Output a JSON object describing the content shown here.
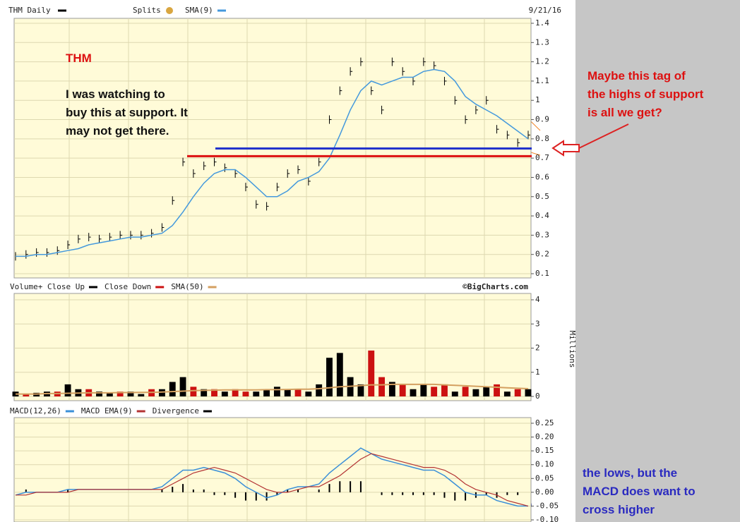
{
  "chart_data": [
    {
      "type": "price",
      "title": "THM Daily",
      "date": "9/21/16",
      "legend": [
        "Splits",
        "SMA(9)"
      ],
      "series": [
        {
          "name": "THM Daily",
          "color": "#000000",
          "values": [
            0.19,
            0.2,
            0.21,
            0.21,
            0.22,
            0.25,
            0.28,
            0.29,
            0.28,
            0.29,
            0.3,
            0.3,
            0.3,
            0.31,
            0.34,
            0.48,
            0.68,
            0.62,
            0.66,
            0.68,
            0.65,
            0.62,
            0.55,
            0.46,
            0.45,
            0.55,
            0.62,
            0.64,
            0.58,
            0.68,
            0.9,
            1.05,
            1.15,
            1.2,
            1.05,
            0.95,
            1.2,
            1.15,
            1.1,
            1.2,
            1.18,
            1.1,
            1.0,
            0.9,
            0.95,
            1.0,
            0.85,
            0.82,
            0.78,
            0.82
          ]
        },
        {
          "name": "SMA(9)",
          "color": "#4499dd",
          "values": [
            0.19,
            0.19,
            0.2,
            0.2,
            0.21,
            0.22,
            0.23,
            0.25,
            0.26,
            0.27,
            0.28,
            0.29,
            0.29,
            0.3,
            0.31,
            0.35,
            0.42,
            0.5,
            0.57,
            0.62,
            0.64,
            0.64,
            0.6,
            0.55,
            0.5,
            0.5,
            0.53,
            0.58,
            0.6,
            0.63,
            0.7,
            0.82,
            0.95,
            1.05,
            1.1,
            1.08,
            1.1,
            1.12,
            1.12,
            1.15,
            1.16,
            1.15,
            1.1,
            1.02,
            0.98,
            0.95,
            0.92,
            0.88,
            0.84,
            0.8
          ]
        }
      ],
      "levels": [
        {
          "value": 0.75,
          "color": "#2233cc"
        },
        {
          "value": 0.71,
          "color": "#dd1111"
        }
      ],
      "ylim": [
        0.1,
        1.4
      ],
      "yticks": [
        0.1,
        0.2,
        0.3,
        0.4,
        0.5,
        0.6,
        0.7,
        0.8,
        0.9,
        1.0,
        1.1,
        1.2,
        1.3,
        1.4
      ],
      "grid": true
    },
    {
      "type": "volume",
      "credit": "©BigCharts.com",
      "ylabel": "Millions",
      "series": [
        {
          "name": "Volume+ Close Up",
          "color": "#000000",
          "values": [
            0.2,
            null,
            0.15,
            0.2,
            null,
            0.5,
            0.3,
            null,
            0.2,
            0.15,
            null,
            0.2,
            0.1,
            null,
            0.3,
            0.6,
            0.8,
            null,
            0.3,
            null,
            0.2,
            null,
            null,
            0.2,
            0.3,
            0.4,
            0.3,
            null,
            0.2,
            0.5,
            1.6,
            1.8,
            0.8,
            0.5,
            null,
            null,
            0.6,
            null,
            0.3,
            0.5,
            null,
            null,
            0.2,
            null,
            0.3,
            0.4,
            null,
            0.2,
            null,
            0.3
          ]
        },
        {
          "name": "Close Down",
          "color": "#cc1111",
          "values": [
            null,
            0.1,
            null,
            null,
            0.2,
            null,
            null,
            0.3,
            null,
            null,
            0.2,
            null,
            null,
            0.3,
            null,
            null,
            null,
            0.4,
            null,
            0.3,
            null,
            0.3,
            0.2,
            null,
            null,
            null,
            null,
            0.3,
            null,
            null,
            null,
            null,
            null,
            null,
            1.9,
            0.8,
            null,
            0.5,
            null,
            null,
            0.4,
            0.5,
            null,
            0.4,
            null,
            null,
            0.5,
            null,
            0.3,
            null
          ]
        },
        {
          "name": "SMA(50)",
          "color": "#d4a060",
          "values": [
            0.1,
            0.1,
            0.1,
            0.12,
            0.12,
            0.13,
            0.14,
            0.15,
            0.15,
            0.15,
            0.16,
            0.16,
            0.17,
            0.17,
            0.18,
            0.2,
            0.22,
            0.24,
            0.25,
            0.26,
            0.27,
            0.27,
            0.27,
            0.27,
            0.28,
            0.28,
            0.29,
            0.3,
            0.3,
            0.32,
            0.36,
            0.4,
            0.42,
            0.45,
            0.48,
            0.48,
            0.5,
            0.5,
            0.5,
            0.5,
            0.5,
            0.48,
            0.46,
            0.44,
            0.42,
            0.4,
            0.38,
            0.36,
            0.34,
            0.32
          ]
        }
      ],
      "ylim": [
        0,
        4
      ],
      "yticks": [
        0,
        1,
        2,
        3,
        4
      ],
      "grid": true
    },
    {
      "type": "macd",
      "series": [
        {
          "name": "MACD(12,26)",
          "color": "#3a8fd8",
          "values": [
            -0.01,
            0,
            0,
            0,
            0,
            0.01,
            0.01,
            0.01,
            0.01,
            0.01,
            0.01,
            0.01,
            0.01,
            0.01,
            0.02,
            0.05,
            0.08,
            0.08,
            0.09,
            0.08,
            0.07,
            0.05,
            0.02,
            0,
            -0.02,
            -0.01,
            0.01,
            0.02,
            0.02,
            0.03,
            0.07,
            0.1,
            0.13,
            0.16,
            0.14,
            0.12,
            0.11,
            0.1,
            0.09,
            0.08,
            0.08,
            0.06,
            0.03,
            0,
            -0.01,
            -0.01,
            -0.03,
            -0.04,
            -0.05,
            -0.05
          ]
        },
        {
          "name": "MACD EMA(9)",
          "color": "#b33333",
          "values": [
            -0.01,
            -0.01,
            0,
            0,
            0,
            0,
            0.01,
            0.01,
            0.01,
            0.01,
            0.01,
            0.01,
            0.01,
            0.01,
            0.01,
            0.03,
            0.05,
            0.07,
            0.08,
            0.09,
            0.08,
            0.07,
            0.05,
            0.03,
            0.01,
            0,
            0,
            0.01,
            0.02,
            0.02,
            0.04,
            0.06,
            0.09,
            0.12,
            0.14,
            0.13,
            0.12,
            0.11,
            0.1,
            0.09,
            0.09,
            0.08,
            0.06,
            0.03,
            0.01,
            0,
            -0.01,
            -0.03,
            -0.04,
            -0.05
          ]
        },
        {
          "name": "Divergence",
          "color": "#000000",
          "values": [
            0,
            0.01,
            0,
            0,
            0,
            0.01,
            0,
            0,
            0,
            0,
            0,
            0,
            0,
            0,
            0.01,
            0.02,
            0.03,
            0.01,
            0.01,
            -0.01,
            -0.01,
            -0.02,
            -0.03,
            -0.03,
            -0.03,
            -0.01,
            0.01,
            0.01,
            0,
            0.01,
            0.03,
            0.04,
            0.04,
            0.04,
            0,
            -0.01,
            -0.01,
            -0.01,
            -0.01,
            -0.01,
            -0.01,
            -0.02,
            -0.03,
            -0.03,
            -0.02,
            -0.01,
            -0.02,
            -0.01,
            -0.01,
            0
          ]
        }
      ],
      "ylim": [
        -0.1,
        0.25
      ],
      "yticks": [
        {
          "value": -0.1,
          "label": "-0.10"
        },
        {
          "value": -0.05,
          "label": "-0.05"
        },
        {
          "value": 0,
          "label": "0.00"
        },
        {
          "value": 0.05,
          "label": "0.05"
        },
        {
          "value": 0.1,
          "label": "0.10"
        },
        {
          "value": 0.15,
          "label": "0.15"
        },
        {
          "value": 0.2,
          "label": "0.20"
        },
        0.25
      ],
      "grid": true
    }
  ],
  "annotations": {
    "ticker": "THM",
    "note": [
      "I was watching to",
      "buy this at support. It",
      "may not get there."
    ],
    "question": [
      "Maybe this tag of",
      "the highs of support",
      "is all we get?"
    ],
    "macd_note": [
      "the lows, but the",
      "MACD does want to",
      "cross higher"
    ]
  }
}
